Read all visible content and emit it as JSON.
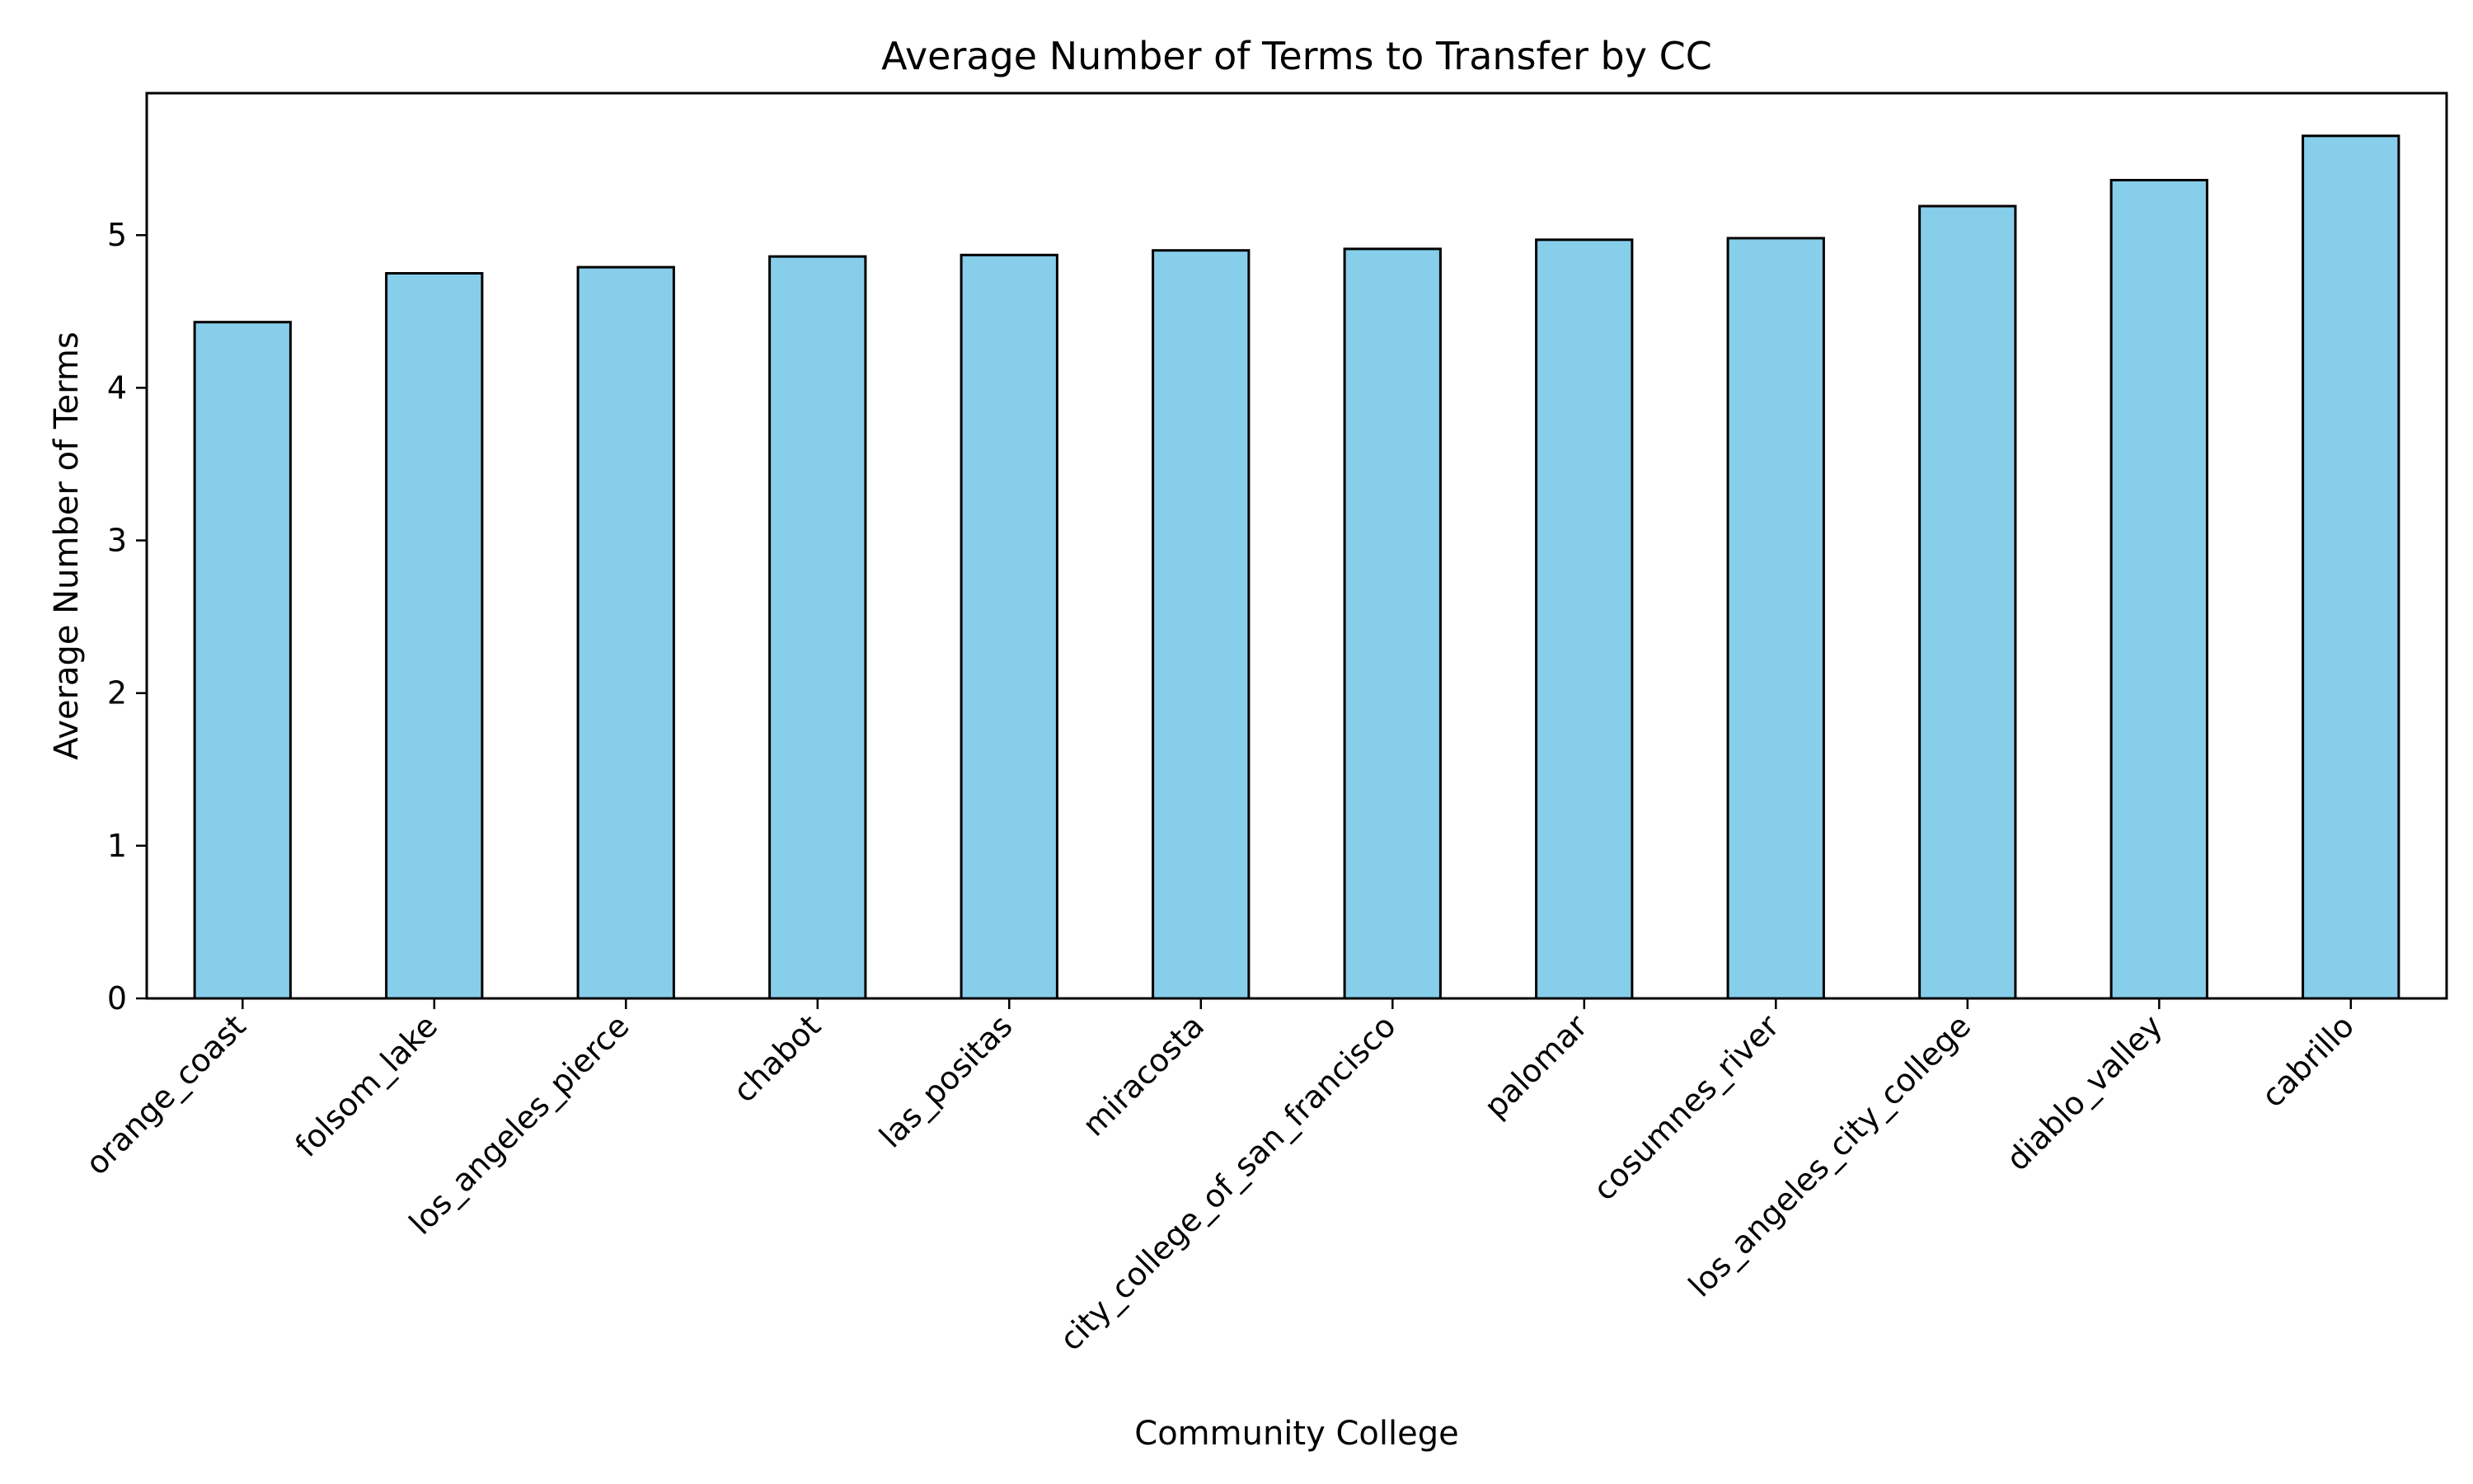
{
  "chart_data": {
    "type": "bar",
    "title": "Average Number of Terms to Transfer by CC",
    "xlabel": "Community College",
    "ylabel": "Average Number of Terms",
    "categories": [
      "orange_coast",
      "folsom_lake",
      "los_angeles_pierce",
      "chabot",
      "las_positas",
      "miracosta",
      "city_college_of_san_francisco",
      "palomar",
      "cosumnes_river",
      "los_angeles_city_college",
      "diablo_valley",
      "cabrillo"
    ],
    "values": [
      4.43,
      4.75,
      4.79,
      4.86,
      4.87,
      4.9,
      4.91,
      4.97,
      4.98,
      5.19,
      5.36,
      5.65
    ],
    "ylim": [
      0,
      5.93
    ],
    "yticks": [
      0,
      1,
      2,
      3,
      4,
      5
    ],
    "grid": false,
    "legend": "none",
    "colors": {
      "bar_fill": "#87ceeb",
      "bar_edge": "#000000",
      "axis": "#000000"
    }
  }
}
